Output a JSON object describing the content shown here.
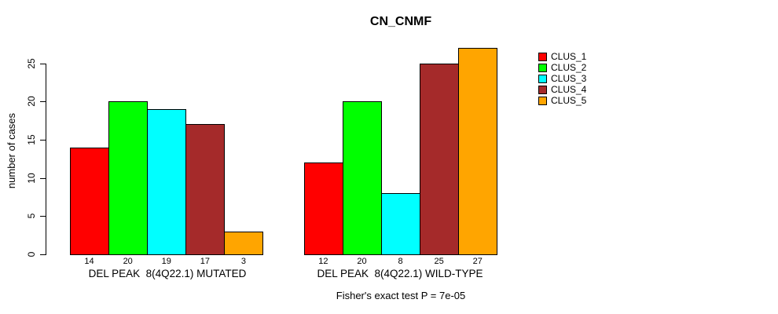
{
  "chart_data": {
    "type": "bar",
    "title": "CN_CNMF",
    "ylabel": "number of cases",
    "xlabel": "",
    "annotation": "Fisher's exact test P = 7e-05",
    "groups": [
      {
        "label": "DEL PEAK  8(4Q22.1) MUTATED",
        "values": [
          14,
          20,
          19,
          17,
          3
        ]
      },
      {
        "label": "DEL PEAK  8(4Q22.1) WILD-TYPE",
        "values": [
          12,
          20,
          8,
          25,
          27
        ]
      }
    ],
    "series": [
      {
        "name": "CLUS_1",
        "color": "#FF0000"
      },
      {
        "name": "CLUS_2",
        "color": "#00FF00"
      },
      {
        "name": "CLUS_3",
        "color": "#00FFFF"
      },
      {
        "name": "CLUS_4",
        "color": "#A52A2A"
      },
      {
        "name": "CLUS_5",
        "color": "#FFA500"
      }
    ],
    "yticks": [
      0,
      5,
      10,
      15,
      20,
      25
    ],
    "ylim": [
      0,
      27.5
    ],
    "grid": false,
    "legend_position": "right",
    "bar_value_labels_shown": true,
    "axis_color": "#000000",
    "text_color": "#000000",
    "background_color": "#FFFFFF"
  }
}
